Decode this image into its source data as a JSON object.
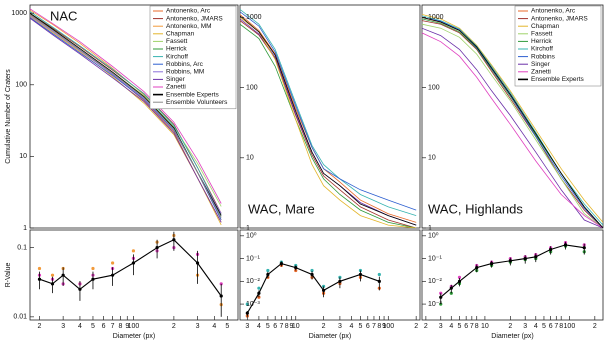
{
  "chart_data": [
    {
      "type": "line",
      "title": "NAC",
      "ylabel": "Cumulative Number of Craters",
      "xscale": "log",
      "yscale": "log",
      "xlim": [
        17,
        600
      ],
      "ylim": [
        1,
        1300
      ],
      "yticks": [
        1,
        10,
        100,
        1000
      ],
      "legend": "upper right",
      "x": [
        17,
        25,
        40,
        70,
        120,
        200,
        300,
        450
      ],
      "series": [
        {
          "name": "Antonenko, Arc",
          "color": "#e8692a",
          "connect": true,
          "values": [
            950,
            560,
            300,
            140,
            60,
            22,
            5,
            1.2
          ]
        },
        {
          "name": "Antonenko, JMARS",
          "color": "#a0302a",
          "connect": true,
          "values": [
            1000,
            620,
            340,
            160,
            75,
            28,
            7,
            1.6
          ]
        },
        {
          "name": "Antonenko, MM",
          "color": "#f29a3a",
          "connect": true,
          "values": [
            1100,
            700,
            380,
            170,
            72,
            24,
            6,
            1.3
          ]
        },
        {
          "name": "Chapman",
          "color": "#e3b52a",
          "connect": true,
          "values": [
            900,
            540,
            290,
            130,
            55,
            20,
            5,
            1.1
          ]
        },
        {
          "name": "Fassett",
          "color": "#9fd26a",
          "connect": true,
          "values": [
            1000,
            600,
            320,
            150,
            70,
            26,
            8,
            2
          ]
        },
        {
          "name": "Herrick",
          "color": "#2f9a3a",
          "connect": true,
          "values": [
            980,
            590,
            310,
            145,
            66,
            25,
            6,
            1.4
          ]
        },
        {
          "name": "Kirchoff",
          "color": "#35b3b0",
          "connect": true,
          "values": [
            1050,
            640,
            350,
            165,
            74,
            27,
            7,
            1.5
          ]
        },
        {
          "name": "Robbins, Arc",
          "color": "#2d5fd0",
          "connect": true,
          "values": [
            870,
            520,
            280,
            135,
            62,
            23,
            6,
            1.3
          ]
        },
        {
          "name": "Robbins, MM",
          "color": "#8a6fd8",
          "connect": true,
          "values": [
            920,
            560,
            300,
            140,
            64,
            24,
            6,
            1.6
          ]
        },
        {
          "name": "Singer",
          "color": "#6a2fa8",
          "connect": true,
          "values": [
            850,
            500,
            270,
            125,
            58,
            21,
            5,
            1.2
          ]
        },
        {
          "name": "Zanetti",
          "color": "#e040c0",
          "connect": true,
          "values": [
            1150,
            720,
            400,
            180,
            80,
            30,
            9,
            2.2
          ]
        },
        {
          "name": "Ensemble Experts",
          "color": "#000000",
          "connect": true,
          "values": [
            1000,
            600,
            320,
            150,
            68,
            25,
            6,
            1.5
          ]
        },
        {
          "name": "Ensemble Volunteers",
          "color": "#8a8a8a",
          "connect": true,
          "values": [
            960,
            580,
            310,
            145,
            66,
            24,
            6,
            1.4
          ]
        }
      ]
    },
    {
      "type": "line",
      "title": "WAC, Mare",
      "xscale": "log",
      "yscale": "log",
      "xlim": [
        2.5,
        220
      ],
      "ylim": [
        1,
        1500
      ],
      "yticks": [
        1,
        10,
        100,
        1000
      ],
      "x": [
        2.5,
        4,
        6,
        10,
        15,
        20,
        30,
        50,
        100,
        200
      ],
      "series": [
        {
          "color": "#e8692a",
          "connect": true,
          "values": [
            1100,
            650,
            300,
            50,
            14,
            7,
            4.5,
            2.5,
            1.6,
            1.2
          ]
        },
        {
          "color": "#a0302a",
          "connect": true,
          "values": [
            900,
            560,
            260,
            40,
            11,
            5.5,
            3.5,
            2,
            1.3,
            1
          ]
        },
        {
          "color": "#2f9a3a",
          "connect": true,
          "values": [
            800,
            500,
            200,
            35,
            10,
            5,
            3,
            1.8,
            1.2,
            1
          ]
        },
        {
          "color": "#35b3b0",
          "connect": true,
          "values": [
            1300,
            800,
            350,
            60,
            15,
            8,
            5,
            3,
            2,
            1.5
          ]
        },
        {
          "color": "#2d5fd0",
          "connect": true,
          "values": [
            1200,
            750,
            320,
            55,
            14,
            7,
            5,
            3.5,
            2.5,
            1.8
          ]
        },
        {
          "color": "#6a2fa8",
          "connect": true,
          "values": [
            950,
            580,
            270,
            42,
            12,
            6,
            4,
            2.3,
            1.5,
            1.1
          ]
        },
        {
          "color": "#e3b52a",
          "connect": true,
          "values": [
            1000,
            620,
            250,
            35,
            8,
            4,
            2.5,
            1.5,
            1.1,
            1
          ]
        },
        {
          "color": "#000000",
          "connect": true,
          "values": [
            1050,
            620,
            290,
            46,
            12,
            6,
            4,
            2.2,
            1.5,
            1.1
          ]
        }
      ]
    },
    {
      "type": "line",
      "title": "WAC, Highlands",
      "xscale": "log",
      "yscale": "log",
      "xlim": [
        1.8,
        250
      ],
      "ylim": [
        1,
        1500
      ],
      "yticks": [
        1,
        10,
        100,
        1000
      ],
      "legend": "upper right",
      "x": [
        1.8,
        3,
        5,
        8,
        12,
        20,
        40,
        80,
        150,
        250
      ],
      "series": [
        {
          "name": "Antonenko, Arc",
          "color": "#e8692a",
          "connect": true,
          "values": [
            1000,
            850,
            650,
            380,
            190,
            80,
            22,
            6,
            2,
            1
          ]
        },
        {
          "name": "Antonenko, JMARS",
          "color": "#a0302a",
          "connect": true,
          "values": [
            900,
            800,
            600,
            350,
            170,
            70,
            20,
            5,
            1.8,
            1
          ]
        },
        {
          "name": "Chapman",
          "color": "#e3b52a",
          "connect": true,
          "values": [
            1100,
            950,
            700,
            400,
            210,
            90,
            25,
            7,
            2.5,
            1.2
          ]
        },
        {
          "name": "Fassett",
          "color": "#9fd26a",
          "connect": true,
          "values": [
            800,
            700,
            520,
            300,
            150,
            65,
            18,
            5,
            1.6,
            1
          ]
        },
        {
          "name": "Herrick",
          "color": "#2f9a3a",
          "connect": true,
          "values": [
            950,
            820,
            620,
            360,
            180,
            75,
            21,
            6,
            2,
            1
          ]
        },
        {
          "name": "Kirchoff",
          "color": "#35b3b0",
          "connect": true,
          "values": [
            1050,
            900,
            680,
            390,
            200,
            85,
            23,
            6,
            2.2,
            1.1
          ]
        },
        {
          "name": "Robbins",
          "color": "#2d5fd0",
          "connect": true,
          "values": [
            1000,
            880,
            660,
            370,
            185,
            78,
            20,
            5.5,
            1.9,
            1
          ]
        },
        {
          "name": "Singer",
          "color": "#6a2fa8",
          "connect": true,
          "values": [
            700,
            550,
            350,
            180,
            90,
            40,
            12,
            3.5,
            1.3,
            1
          ]
        },
        {
          "name": "Zanetti",
          "color": "#e040c0",
          "connect": true,
          "values": [
            600,
            450,
            280,
            140,
            70,
            30,
            9,
            3,
            1.5,
            1
          ]
        },
        {
          "name": "Ensemble Experts",
          "color": "#000000",
          "connect": true,
          "values": [
            1000,
            860,
            650,
            380,
            190,
            80,
            22,
            6,
            2,
            1
          ]
        }
      ]
    },
    {
      "type": "line",
      "ylabel": "R-Value",
      "xlabel": "Diameter (px)",
      "xscale": "log",
      "yscale": "log",
      "xlim": [
        17,
        600
      ],
      "ylim": [
        0.009,
        0.18
      ],
      "yticks": [
        0.01,
        0.1
      ],
      "xticks": [
        {
          "value": 20,
          "label": "2"
        },
        {
          "value": 30,
          "label": "3"
        },
        {
          "value": 40,
          "label": "4"
        },
        {
          "value": 50,
          "label": "5"
        },
        {
          "value": 60,
          "label": "6"
        },
        {
          "value": 70,
          "label": "7"
        },
        {
          "value": 80,
          "label": "8"
        },
        {
          "value": 90,
          "label": "9"
        },
        100,
        {
          "value": 200,
          "label": "2"
        },
        {
          "value": 300,
          "label": "3"
        },
        {
          "value": 400,
          "label": "4"
        },
        {
          "value": 500,
          "label": "5"
        }
      ],
      "x": [
        20,
        25,
        30,
        40,
        50,
        70,
        100,
        150,
        200,
        300,
        450
      ],
      "series": [
        {
          "color": "#f29a3a",
          "connect": false,
          "values": [
            0.05,
            0.04,
            0.05,
            0.03,
            0.05,
            0.06,
            0.09,
            0.12,
            0.15,
            0.04,
            0.015
          ]
        },
        {
          "color": "#e040c0",
          "connect": false,
          "values": [
            0.04,
            0.035,
            0.03,
            0.03,
            0.04,
            0.05,
            0.07,
            0.09,
            0.1,
            0.08,
            0.03
          ]
        },
        {
          "color": "#000000",
          "connect": true,
          "values": [
            0.035,
            0.03,
            0.04,
            0.025,
            0.035,
            0.04,
            0.06,
            0.1,
            0.13,
            0.06,
            0.02
          ],
          "errors": [
            0.01,
            0.008,
            0.012,
            0.008,
            0.01,
            0.012,
            0.02,
            0.03,
            0.04,
            0.03,
            0.01
          ]
        }
      ]
    },
    {
      "type": "line",
      "xlabel": "Diameter (px)",
      "xscale": "log",
      "yscale": "log",
      "xlim": [
        2.5,
        220
      ],
      "ylim": [
        0.0002,
        1.8
      ],
      "yticks": [
        {
          "value": 1,
          "label": "10⁰"
        },
        {
          "value": 0.1,
          "label": "10⁻¹"
        },
        {
          "value": 0.01,
          "label": "10⁻²"
        },
        {
          "value": 0.001,
          "label": "10⁻³"
        }
      ],
      "xticks": [
        3,
        4,
        5,
        6,
        7,
        8,
        9,
        10,
        {
          "value": 20,
          "label": "2"
        },
        {
          "value": 30,
          "label": "3"
        },
        {
          "value": 40,
          "label": "4"
        },
        {
          "value": 50,
          "label": "5"
        },
        {
          "value": 60,
          "label": "6"
        },
        {
          "value": 70,
          "label": "7"
        },
        {
          "value": 80,
          "label": "8"
        },
        {
          "value": 90,
          "label": "9"
        },
        100,
        {
          "value": 200,
          "label": "2"
        }
      ],
      "x": [
        3,
        4,
        5,
        7,
        10,
        15,
        20,
        30,
        50,
        80
      ],
      "series": [
        {
          "color": "#35b3b0",
          "connect": false,
          "values": [
            0.001,
            0.005,
            0.03,
            0.07,
            0.05,
            0.03,
            0.006,
            0.015,
            0.03,
            0.02
          ]
        },
        {
          "color": "#e8692a",
          "connect": false,
          "values": [
            0.0003,
            0.002,
            0.015,
            0.05,
            0.03,
            0.015,
            0.003,
            0.008,
            0.015,
            0.005
          ]
        },
        {
          "color": "#000000",
          "connect": true,
          "values": [
            0.0004,
            0.003,
            0.02,
            0.06,
            0.04,
            0.02,
            0.004,
            0.01,
            0.02,
            0.01
          ],
          "errors": [
            0.0001,
            0.001,
            0.006,
            0.015,
            0.01,
            0.008,
            0.002,
            0.005,
            0.01,
            0.006
          ]
        }
      ]
    },
    {
      "type": "line",
      "xlabel": "Diameter (px)",
      "xscale": "log",
      "yscale": "log",
      "xlim": [
        1.8,
        250
      ],
      "ylim": [
        0.0002,
        1.8
      ],
      "yticks": [
        {
          "value": 1,
          "label": "10⁰"
        },
        {
          "value": 0.1,
          "label": "10⁻¹"
        },
        {
          "value": 0.01,
          "label": "10⁻²"
        },
        {
          "value": 0.001,
          "label": "10⁻³"
        }
      ],
      "xticks": [
        2,
        3,
        4,
        5,
        6,
        7,
        8,
        10,
        {
          "value": 20,
          "label": "2"
        },
        {
          "value": 30,
          "label": "3"
        },
        {
          "value": 40,
          "label": "4"
        },
        {
          "value": 50,
          "label": "5"
        },
        {
          "value": 60,
          "label": "6"
        },
        {
          "value": 70,
          "label": "7"
        },
        {
          "value": 80,
          "label": "8"
        },
        100,
        {
          "value": 200,
          "label": "2"
        }
      ],
      "x": [
        3,
        4,
        5,
        8,
        12,
        20,
        30,
        40,
        60,
        90,
        150
      ],
      "series": [
        {
          "color": "#2f9a3a",
          "connect": false,
          "values": [
            0.001,
            0.003,
            0.008,
            0.03,
            0.05,
            0.07,
            0.09,
            0.1,
            0.2,
            0.35,
            0.2
          ]
        },
        {
          "color": "#e040c0",
          "connect": false,
          "values": [
            0.003,
            0.006,
            0.015,
            0.05,
            0.07,
            0.1,
            0.12,
            0.15,
            0.3,
            0.5,
            0.4
          ]
        },
        {
          "color": "#000000",
          "connect": true,
          "values": [
            0.002,
            0.005,
            0.01,
            0.04,
            0.06,
            0.08,
            0.1,
            0.12,
            0.25,
            0.4,
            0.3
          ],
          "errors": [
            0.001,
            0.002,
            0.004,
            0.015,
            0.02,
            0.03,
            0.04,
            0.05,
            0.1,
            0.15,
            0.15
          ]
        }
      ]
    }
  ]
}
